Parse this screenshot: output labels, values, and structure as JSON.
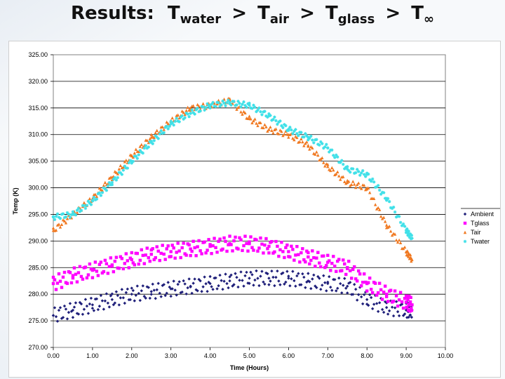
{
  "title": {
    "prefix": "Results:",
    "letter": "T",
    "terms": [
      {
        "sub": "water"
      },
      {
        "sub": "air"
      },
      {
        "sub": "glass"
      },
      {
        "sub": "∞"
      }
    ],
    "operator": ">"
  },
  "chart_data": {
    "type": "scatter",
    "xlabel": "Time (Hours)",
    "ylabel": "Temp (K)",
    "xlim": [
      0,
      10
    ],
    "ylim": [
      270,
      325
    ],
    "x_ticks": [
      "0.00",
      "1.00",
      "2.00",
      "3.00",
      "4.00",
      "5.00",
      "6.00",
      "7.00",
      "8.00",
      "9.00",
      "10.00"
    ],
    "y_ticks": [
      "270.00",
      "275.00",
      "280.00",
      "285.00",
      "290.00",
      "295.00",
      "300.00",
      "305.00",
      "310.00",
      "315.00",
      "320.00",
      "325.00"
    ],
    "grid": "horizontal",
    "legend": "right",
    "series": [
      {
        "name": "Ambient",
        "color": "#1f1f7a",
        "marker": "diamond",
        "x": [
          0,
          0.5,
          1,
          1.5,
          2,
          2.5,
          3,
          3.5,
          4,
          4.5,
          5,
          5.5,
          6,
          6.5,
          7,
          7.5,
          8,
          8.5,
          9,
          9.15
        ],
        "y": [
          276,
          277,
          278,
          279,
          280,
          280.5,
          281,
          281.5,
          282,
          282.5,
          283,
          283,
          283,
          282.5,
          282,
          281.5,
          279,
          277.5,
          277,
          277
        ]
      },
      {
        "name": "Tglass",
        "color": "#ff00ff",
        "marker": "square",
        "x": [
          0,
          0.5,
          1,
          1.5,
          2,
          2.5,
          3,
          3.5,
          4,
          4.5,
          5,
          5.5,
          6,
          6.5,
          7,
          7.5,
          8,
          8.5,
          9,
          9.15
        ],
        "y": [
          282,
          283.5,
          284.5,
          285.5,
          286.5,
          287.5,
          288,
          288.5,
          289,
          289.5,
          289.5,
          289,
          288,
          287,
          286,
          285,
          282,
          280,
          278.5,
          278
        ]
      },
      {
        "name": "Tair",
        "color": "#f07820",
        "marker": "triangle",
        "x": [
          0,
          0.5,
          1,
          1.5,
          2,
          2.5,
          3,
          3.5,
          4,
          4.5,
          5,
          5.5,
          6,
          6.5,
          7,
          7.5,
          8,
          8.5,
          9,
          9.15
        ],
        "y": [
          292,
          295,
          298,
          302,
          306,
          309.5,
          312.5,
          315,
          315.5,
          316.5,
          313,
          311,
          310,
          308,
          304,
          301,
          300,
          293,
          288,
          286.5
        ]
      },
      {
        "name": "Twater",
        "color": "#40e0e8",
        "marker": "star",
        "x": [
          0,
          0.5,
          1,
          1.5,
          2,
          2.5,
          3,
          3.5,
          4,
          4.5,
          5,
          5.5,
          6,
          6.5,
          7,
          7.5,
          8,
          8.5,
          9,
          9.15
        ],
        "y": [
          294.5,
          295,
          297.5,
          301,
          305,
          308.5,
          312,
          314,
          315.5,
          316,
          315.5,
          313.5,
          311,
          309.5,
          307.5,
          303.5,
          302.5,
          298,
          292,
          290.5
        ]
      }
    ]
  }
}
